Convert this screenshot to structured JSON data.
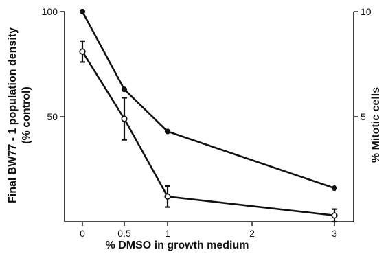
{
  "chart_data": {
    "type": "line",
    "x_axis": {
      "label": "% DMSO in growth medium",
      "tick_labels": [
        "0",
        "0.5",
        "1",
        "2",
        "3"
      ]
    },
    "y_left": {
      "label_line1": "Final BW77 - 1 population density",
      "label_line2": "(% control)",
      "range": [
        0,
        100
      ],
      "tick_labels": [
        "100",
        "50"
      ]
    },
    "y_right": {
      "label": "% Mitotic cells",
      "range": [
        0,
        10
      ],
      "tick_labels": [
        "10",
        "5"
      ]
    },
    "series": [
      {
        "marker": "filled-circle",
        "axis": "right",
        "x": [
          "0",
          "0.5",
          "1",
          "3"
        ],
        "y": [
          10,
          6.3,
          4.3,
          1.6
        ]
      },
      {
        "marker": "open-circle",
        "axis": "left",
        "x": [
          "0",
          "0.5",
          "1",
          "3"
        ],
        "y": [
          81,
          49,
          12,
          3
        ],
        "error": [
          5,
          10,
          5,
          3
        ]
      }
    ]
  }
}
